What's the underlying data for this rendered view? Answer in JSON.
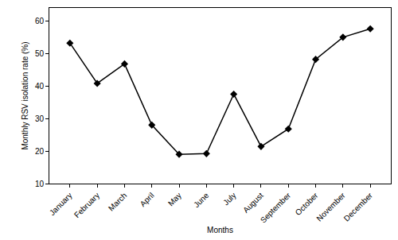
{
  "chart_data": {
    "type": "line",
    "x_label": "Months",
    "y_label": "Monthly RSV isolation rate (%)",
    "categories": [
      "January",
      "February",
      "March",
      "April",
      "May",
      "June",
      "July",
      "August",
      "September",
      "October",
      "November",
      "December"
    ],
    "values": [
      53.2,
      40.8,
      46.8,
      28,
      19,
      19.2,
      37.5,
      21.4,
      26.8,
      48.2,
      55,
      57.6
    ],
    "color": "#000000",
    "marker": "diamond",
    "line_style": "solid",
    "ylim": [
      10,
      64
    ],
    "yticks": [
      10,
      20,
      30,
      40,
      50,
      60
    ],
    "grid": false
  }
}
